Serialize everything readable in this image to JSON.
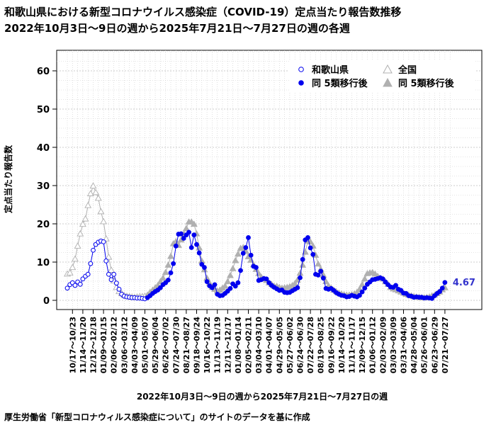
{
  "header": {
    "title_line1": "和歌山県における新型コロナウイルス感染症（COVID-19）定点当たり報告数推移",
    "title_line2": "2022年10月3日〜9日の週から2025年7月21日〜7月27日の週の各週"
  },
  "footer": {
    "source": "厚生労働省「新型コロナウィルス感染症について」のサイトのデータを基に作成"
  },
  "colors": {
    "prefecture": "#0000ee",
    "national": "#b0b0b0",
    "grid": "#cccccc",
    "callout": "#3333cc"
  },
  "chart_data": {
    "type": "line",
    "xlabel": "2022年10月3日〜9日の週から2025年7月21日〜7月27日の週",
    "ylabel": "定点当たり報告数",
    "ylim": [
      -3,
      66
    ],
    "yticks": [
      0,
      10,
      20,
      30,
      40,
      50,
      60
    ],
    "grid": true,
    "legend_position": "top-right",
    "tick_labels": [
      "10/17〜10/23",
      "11/14〜11/20",
      "12/12〜12/18",
      "01/09〜01/15",
      "02/06〜02/12",
      "03/06〜03/12",
      "04/03〜04/09",
      "05/01〜05/07",
      "05/29〜06/04",
      "06/26〜07/02",
      "07/24〜07/30",
      "08/21〜08/27",
      "09/18〜09/24",
      "10/16〜10/22",
      "11/13〜11/19",
      "12/11〜12/17",
      "01/08〜01/14",
      "02/05〜02/11",
      "03/04〜03/10",
      "04/01〜04/07",
      "04/29〜05/05",
      "05/27〜06/02",
      "06/24〜06/30",
      "07/22〜07/28",
      "08/19〜08/25",
      "09/16〜09/22",
      "10/14〜10/20",
      "11/11〜11/17",
      "12/09〜12/15",
      "01/06〜01/12",
      "02/03〜02/09",
      "03/03〜03/09",
      "03/31〜04/06",
      "04/28〜05/04",
      "05/26〜06/01",
      "06/23〜06/29",
      "07/21〜07/27"
    ],
    "tick_week_index": [
      2,
      6,
      10,
      14,
      18,
      22,
      26,
      30,
      34,
      38,
      42,
      46,
      50,
      54,
      58,
      62,
      66,
      70,
      74,
      78,
      82,
      86,
      90,
      94,
      98,
      102,
      106,
      110,
      114,
      118,
      122,
      126,
      130,
      134,
      138,
      142,
      146
    ],
    "split_index": 31,
    "last_value_label": "4.67",
    "series": [
      {
        "name": "和歌山県",
        "label_post": "同 5類移行後",
        "values": [
          3.2,
          4.1,
          4.6,
          3.9,
          4.8,
          4.2,
          5.6,
          6.3,
          6.8,
          9.6,
          13.1,
          14.6,
          15.2,
          15.5,
          15.3,
          10.3,
          6.8,
          5.4,
          6.8,
          4.5,
          2.9,
          1.6,
          1.1,
          0.9,
          0.8,
          0.7,
          0.7,
          0.6,
          0.6,
          0.5,
          0.4,
          0.7,
          1.2,
          1.8,
          2.3,
          2.7,
          3.3,
          4.1,
          4.6,
          5.3,
          7.2,
          9.6,
          14.2,
          17.3,
          17.4,
          16.2,
          17.1,
          17.8,
          13.8,
          17.1,
          14.6,
          12.4,
          9.4,
          8.6,
          4.9,
          3.8,
          3.3,
          4.1,
          1.6,
          1.2,
          1.3,
          1.8,
          2.4,
          3.1,
          4.3,
          3.7,
          4.6,
          7.8,
          12.3,
          13.8,
          16.4,
          11.8,
          8.9,
          8.6,
          5.2,
          5.4,
          5.7,
          5.6,
          4.6,
          3.9,
          3.4,
          3.0,
          2.6,
          2.7,
          2.1,
          2.0,
          2.1,
          2.5,
          2.9,
          3.3,
          5.9,
          10.7,
          15.8,
          16.4,
          13.7,
          12.0,
          6.8,
          6.6,
          7.6,
          5.8,
          3.1,
          2.9,
          3.1,
          2.6,
          2.0,
          1.6,
          1.3,
          1.2,
          0.9,
          1.0,
          1.3,
          1.1,
          0.9,
          1.3,
          2.2,
          3.2,
          4.2,
          4.8,
          5.4,
          5.5,
          5.7,
          5.9,
          5.6,
          4.8,
          4.1,
          3.5,
          3.4,
          3.9,
          2.9,
          2.6,
          1.9,
          1.8,
          1.2,
          1.1,
          0.8,
          0.9,
          0.8,
          0.8,
          0.6,
          0.7,
          0.6,
          0.5,
          1.2,
          1.8,
          2.3,
          3.2,
          4.67
        ]
      },
      {
        "name": "全国",
        "label_post": "同 5類移行後",
        "values": [
          6.9,
          7.2,
          8.6,
          10.8,
          14.2,
          17.4,
          19.9,
          21.3,
          24.8,
          27.9,
          29.9,
          28.2,
          26.7,
          23.2,
          20.6,
          16.1,
          11.3,
          7.9,
          5.1,
          3.4,
          2.3,
          1.8,
          1.3,
          1.1,
          1.0,
          0.9,
          0.8,
          0.9,
          1.0,
          1.0,
          1.1,
          1.4,
          2.1,
          2.7,
          3.3,
          3.9,
          4.9,
          5.8,
          7.3,
          9.2,
          11.5,
          14.8,
          15.4,
          14.4,
          15.8,
          17.3,
          18.8,
          20.5,
          20.5,
          19.9,
          17.4,
          13.7,
          10.3,
          8.0,
          5.8,
          4.5,
          3.4,
          2.9,
          2.5,
          2.7,
          3.2,
          3.7,
          4.9,
          6.5,
          8.3,
          10.4,
          12.1,
          13.6,
          13.8,
          12.9,
          11.4,
          10.5,
          9.3,
          8.1,
          7.0,
          6.1,
          5.6,
          5.2,
          4.6,
          4.2,
          3.7,
          3.7,
          3.4,
          3.2,
          3.3,
          3.4,
          3.6,
          3.9,
          4.4,
          5.3,
          7.1,
          9.2,
          12.6,
          15.5,
          15.3,
          14.2,
          11.8,
          9.5,
          8.1,
          6.6,
          4.9,
          3.8,
          3.2,
          2.7,
          2.3,
          1.9,
          1.7,
          1.5,
          1.4,
          1.4,
          1.5,
          1.7,
          2.1,
          2.9,
          4.1,
          5.6,
          7.0,
          7.2,
          7.3,
          6.9,
          6.3,
          5.8,
          5.6,
          4.9,
          4.2,
          3.4,
          3.0,
          2.8,
          2.5,
          2.2,
          1.9,
          1.6,
          1.4,
          1.2,
          1.0,
          0.9,
          0.8,
          0.7,
          0.7,
          0.8,
          0.9,
          1.2,
          1.4,
          1.8,
          2.2,
          2.8,
          3.3
        ]
      }
    ]
  }
}
